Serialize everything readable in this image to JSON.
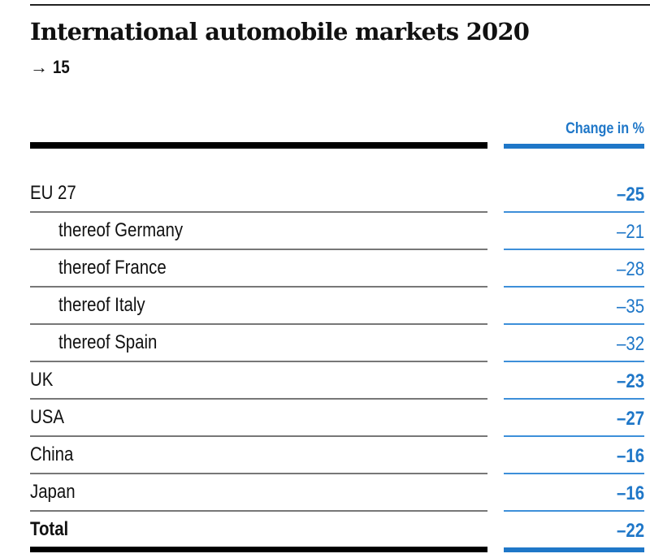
{
  "title": "International automobile markets 2020",
  "reference": {
    "arrow": "→",
    "number": "15"
  },
  "column_header": "Change in %",
  "colors": {
    "accent": "#1f77c8",
    "rule": "#000000"
  },
  "rows": [
    {
      "label": "EU 27",
      "value": "–25",
      "indent": false,
      "bold_value": true
    },
    {
      "label": "thereof Germany",
      "value": "–21",
      "indent": true,
      "bold_value": false
    },
    {
      "label": "thereof France",
      "value": "–28",
      "indent": true,
      "bold_value": false
    },
    {
      "label": "thereof Italy",
      "value": "–35",
      "indent": true,
      "bold_value": false
    },
    {
      "label": "thereof Spain",
      "value": "–32",
      "indent": true,
      "bold_value": false
    },
    {
      "label": "UK",
      "value": "–23",
      "indent": false,
      "bold_value": true
    },
    {
      "label": "USA",
      "value": "–27",
      "indent": false,
      "bold_value": true
    },
    {
      "label": "China",
      "value": "–16",
      "indent": false,
      "bold_value": true
    },
    {
      "label": "Japan",
      "value": "–16",
      "indent": false,
      "bold_value": true
    },
    {
      "label": "Total",
      "value": "–22",
      "indent": false,
      "bold_value": true
    }
  ]
}
